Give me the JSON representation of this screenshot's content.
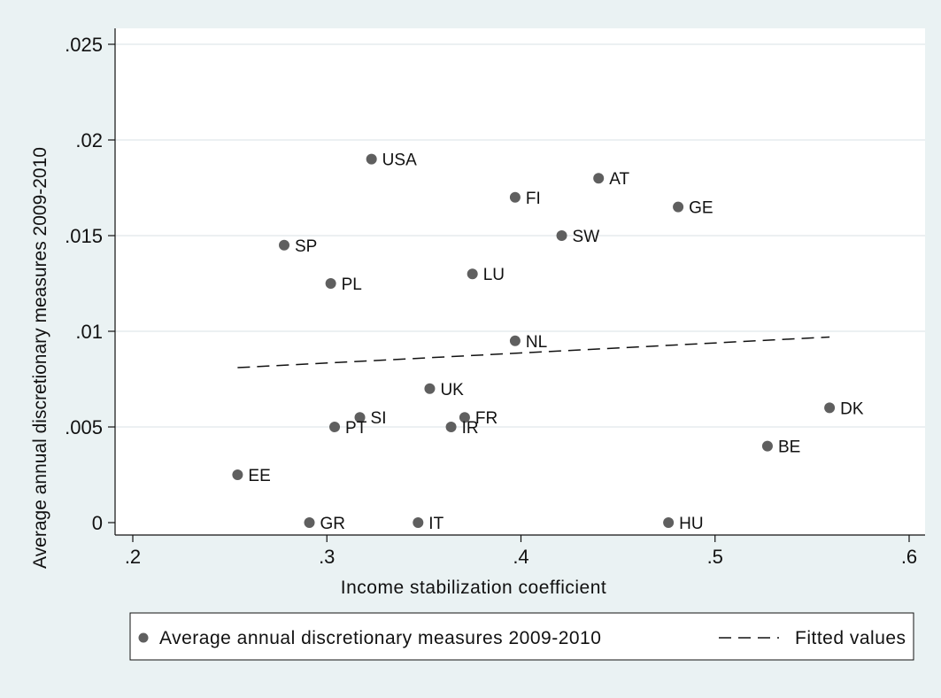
{
  "chart_data": {
    "type": "scatter",
    "title": "",
    "xlabel": "Income stabilization coefficient",
    "ylabel": "Average annual discretionary measures 2009-2010",
    "xlim": [
      0.2,
      0.6
    ],
    "ylim": [
      0,
      0.025
    ],
    "x_ticks": [
      0.2,
      0.3,
      0.4,
      0.5,
      0.6
    ],
    "x_tick_labels": [
      ".2",
      ".3",
      ".4",
      ".5",
      ".6"
    ],
    "y_ticks": [
      0,
      0.005,
      0.01,
      0.015,
      0.02,
      0.025
    ],
    "y_tick_labels": [
      "0",
      ".005",
      ".01",
      ".015",
      ".02",
      ".025"
    ],
    "grid": "horizontal",
    "legend_position": "bottom",
    "colors": {
      "points": "#5f5f5f",
      "fit_line": "#111111",
      "plot_bg": "#ffffff",
      "outer_bg": "#eaf2f3",
      "grid": "#e6ecee"
    },
    "series": [
      {
        "name": "Average annual discretionary measures 2009-2010",
        "kind": "scatter",
        "points": [
          {
            "label": "USA",
            "x": 0.323,
            "y": 0.019
          },
          {
            "label": "AT",
            "x": 0.44,
            "y": 0.018
          },
          {
            "label": "FI",
            "x": 0.397,
            "y": 0.017
          },
          {
            "label": "GE",
            "x": 0.481,
            "y": 0.0165
          },
          {
            "label": "SW",
            "x": 0.421,
            "y": 0.015
          },
          {
            "label": "SP",
            "x": 0.278,
            "y": 0.0145
          },
          {
            "label": "LU",
            "x": 0.375,
            "y": 0.013
          },
          {
            "label": "PL",
            "x": 0.302,
            "y": 0.0125
          },
          {
            "label": "NL",
            "x": 0.397,
            "y": 0.0095
          },
          {
            "label": "UK",
            "x": 0.353,
            "y": 0.007
          },
          {
            "label": "DK",
            "x": 0.559,
            "y": 0.006
          },
          {
            "label": "SI",
            "x": 0.317,
            "y": 0.0055
          },
          {
            "label": "FR",
            "x": 0.371,
            "y": 0.0055
          },
          {
            "label": "PT",
            "x": 0.304,
            "y": 0.005
          },
          {
            "label": "IR",
            "x": 0.364,
            "y": 0.005
          },
          {
            "label": "BE",
            "x": 0.527,
            "y": 0.004
          },
          {
            "label": "EE",
            "x": 0.254,
            "y": 0.0025
          },
          {
            "label": "GR",
            "x": 0.291,
            "y": 0.0
          },
          {
            "label": "IT",
            "x": 0.347,
            "y": 0.0
          },
          {
            "label": "HU",
            "x": 0.476,
            "y": 0.0
          }
        ]
      },
      {
        "name": "Fitted values",
        "kind": "line-dashed",
        "points": [
          {
            "x": 0.254,
            "y": 0.0081
          },
          {
            "x": 0.559,
            "y": 0.0097
          }
        ]
      }
    ]
  }
}
